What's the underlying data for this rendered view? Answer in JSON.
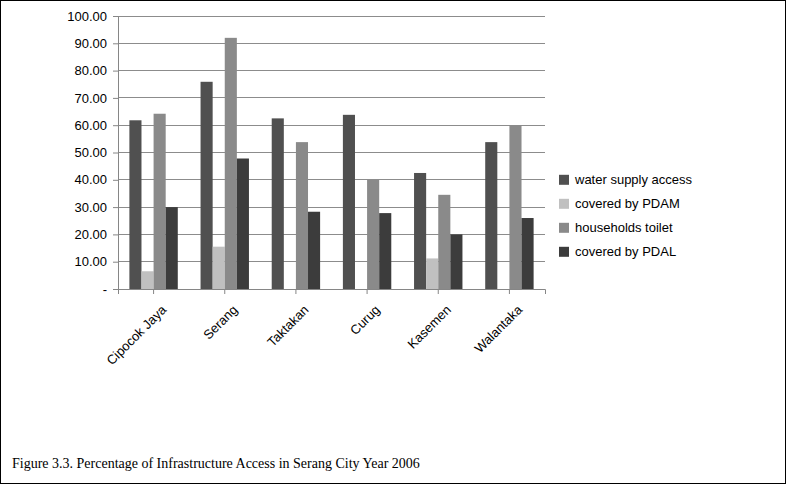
{
  "chart_data": {
    "type": "bar",
    "title": "Figure 3.3. Percentage of Infrastructure Access in Serang City Year 2006",
    "categories": [
      "Cipocok Jaya",
      "Serang",
      "Taktakan",
      "Curug",
      "Kasemen",
      "Walantaka"
    ],
    "series": [
      {
        "name": "water supply access",
        "color": "#505050",
        "values": [
          61.8,
          75.9,
          62.5,
          63.8,
          42.5,
          53.8
        ]
      },
      {
        "name": "covered by PDAM",
        "color": "#c0c0c0",
        "values": [
          6.5,
          15.5,
          0,
          0,
          11.2,
          0
        ]
      },
      {
        "name": "households toilet",
        "color": "#8a8a8a",
        "values": [
          64.2,
          92.0,
          53.8,
          40.0,
          34.5,
          60.0
        ]
      },
      {
        "name": "covered by PDAL",
        "color": "#3c3c3c",
        "values": [
          30.0,
          47.8,
          28.3,
          27.8,
          20.0,
          26.0
        ]
      }
    ],
    "ylim": [
      0,
      100
    ],
    "yticks": [
      {
        "value": 0,
        "label": "-"
      },
      {
        "value": 10,
        "label": "10.00"
      },
      {
        "value": 20,
        "label": "20.00"
      },
      {
        "value": 30,
        "label": "30.00"
      },
      {
        "value": 40,
        "label": "40.00"
      },
      {
        "value": 50,
        "label": "50.00"
      },
      {
        "value": 60,
        "label": "60.00"
      },
      {
        "value": 70,
        "label": "70.00"
      },
      {
        "value": 80,
        "label": "80.00"
      },
      {
        "value": 90,
        "label": "90.00"
      },
      {
        "value": 100,
        "label": "100.00"
      }
    ],
    "grid": true,
    "legend": "right"
  }
}
